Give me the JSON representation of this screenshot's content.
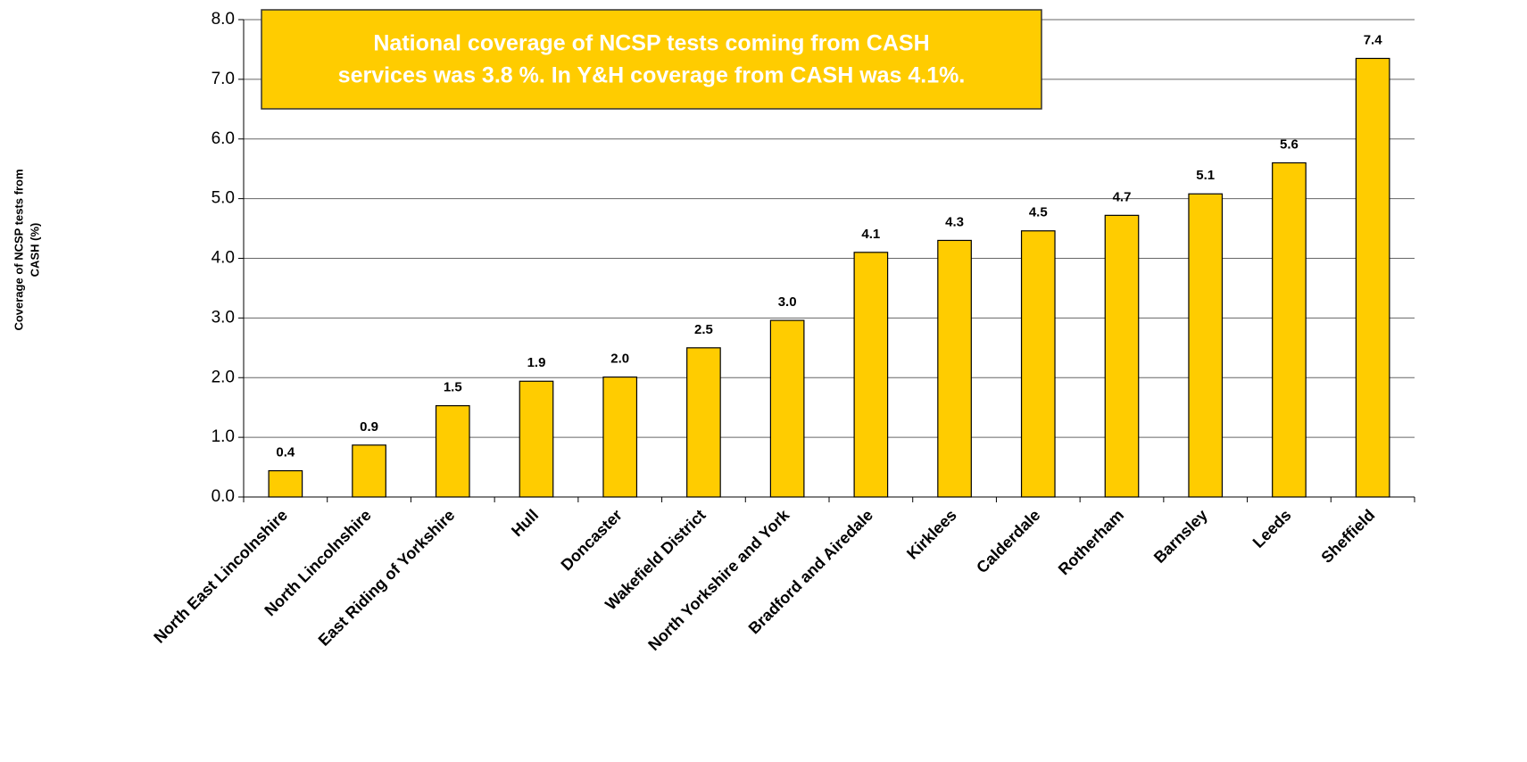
{
  "chart_data": {
    "type": "bar",
    "annotation": [
      "National coverage of  NCSP tests coming from CASH",
      "services was 3.8 %. In Y&H coverage from CASH was 4.1%."
    ],
    "ylabel": [
      "Coverage of NCSP tests from",
      "CASH (%)"
    ],
    "categories": [
      "North East Lincolnshire",
      "North Lincolnshire",
      "East Riding of Yorkshire",
      "Hull",
      "Doncaster",
      "Wakefield District",
      "North Yorkshire and York",
      "Bradford and Airedale",
      "Kirklees",
      "Calderdale",
      "Rotherham",
      "Barnsley",
      "Leeds",
      "Sheffield"
    ],
    "values": [
      0.44,
      0.87,
      1.53,
      1.94,
      2.01,
      2.5,
      2.96,
      4.1,
      4.3,
      4.46,
      4.72,
      5.08,
      5.6,
      7.35
    ],
    "value_labels": [
      "0.4",
      "0.9",
      "1.5",
      "1.9",
      "2.0",
      "2.5",
      "3.0",
      "4.1",
      "4.3",
      "4.5",
      "4.7",
      "5.1",
      "5.6",
      "7.4"
    ],
    "color": "#ffcc00",
    "ylim": [
      0,
      8
    ],
    "yticks": [
      {
        "value": 0,
        "label": "0.0"
      },
      {
        "value": 1,
        "label": "1.0"
      },
      {
        "value": 2,
        "label": "2.0"
      },
      {
        "value": 3,
        "label": "3.0"
      },
      {
        "value": 4,
        "label": "4.0"
      },
      {
        "value": 5,
        "label": "5.0"
      },
      {
        "value": 6,
        "label": "6.0"
      },
      {
        "value": 7,
        "label": "7.0"
      },
      {
        "value": 8,
        "label": "8.0"
      }
    ],
    "grid": true
  }
}
